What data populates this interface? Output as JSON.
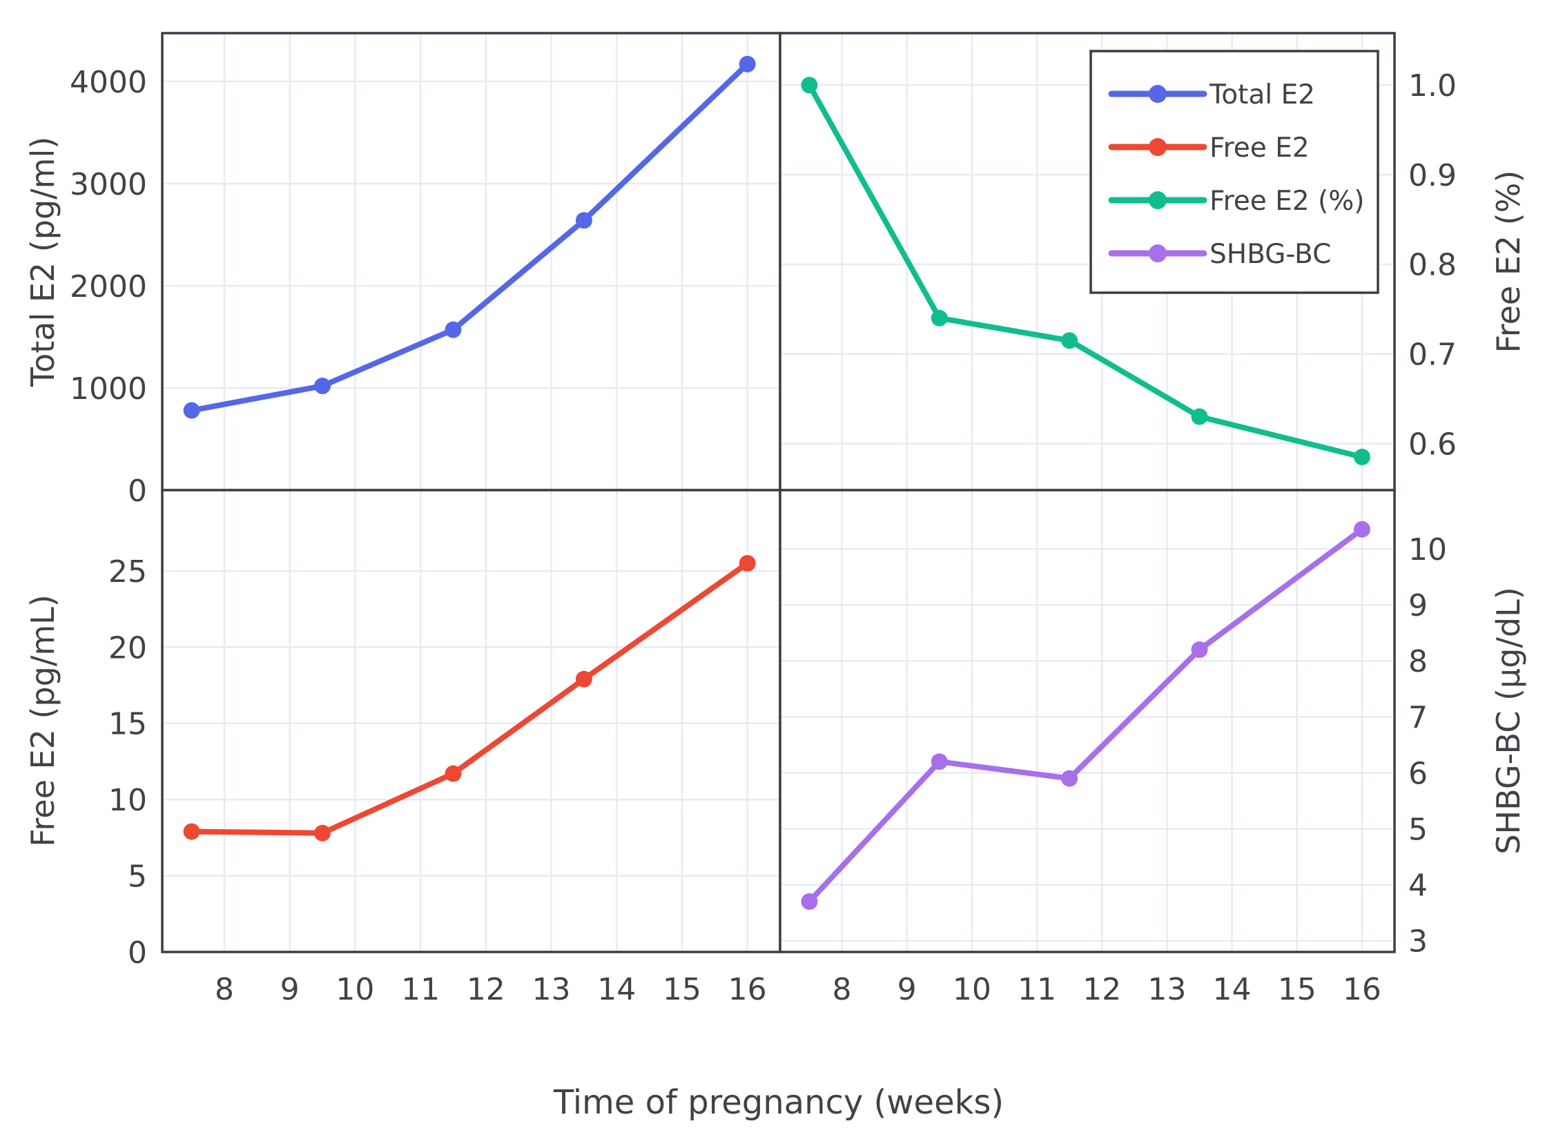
{
  "chart_data": {
    "type": "line",
    "title": "",
    "xlabel": "Time of pregnancy (weeks)",
    "x": [
      7.5,
      9.5,
      11.5,
      13.5,
      16
    ],
    "x_ticks": [
      8,
      9,
      10,
      11,
      12,
      13,
      14,
      15,
      16
    ],
    "x_range": [
      7.05,
      16.5
    ],
    "grid": true,
    "marker": "circle",
    "style": {
      "background": "#ffffff",
      "grid_color": "#e7ebf6",
      "axis_color": "#3a3e45",
      "text_color": "#3f4347"
    },
    "panels": [
      {
        "id": "top-left",
        "series": "Total E2",
        "ylabel": "Total E2 (pg/ml)",
        "axis_side": "left",
        "color": "#5467e8",
        "values": [
          780,
          1020,
          1570,
          2640,
          4170
        ],
        "y_ticks": [
          0,
          1000,
          2000,
          3000,
          4000
        ],
        "y_range": [
          0,
          4473
        ],
        "tick_decimals": 0
      },
      {
        "id": "top-right",
        "series": "Free E2 (%)",
        "ylabel": "Free E2 (%)",
        "axis_side": "right",
        "color": "#10bd8e",
        "values": [
          1.0,
          0.74,
          0.715,
          0.63,
          0.585
        ],
        "y_ticks": [
          0.6,
          0.7,
          0.8,
          0.9,
          1.0
        ],
        "y_range": [
          0.548,
          1.058
        ],
        "tick_decimals": 1
      },
      {
        "id": "bottom-left",
        "series": "Free E2",
        "ylabel": "Free E2 (pg/mL)",
        "axis_side": "left",
        "color": "#ee4834",
        "values": [
          7.9,
          7.8,
          11.7,
          17.9,
          25.5
        ],
        "y_ticks": [
          0,
          5,
          10,
          15,
          20,
          25
        ],
        "y_range": [
          0,
          30.3
        ],
        "tick_decimals": 0
      },
      {
        "id": "bottom-right",
        "series": "SHBG-BC",
        "ylabel": "SHBG-BC (µg/dL)",
        "axis_side": "right",
        "color": "#a770ea",
        "values": [
          3.7,
          6.2,
          5.9,
          8.2,
          10.35
        ],
        "y_ticks": [
          3,
          4,
          5,
          6,
          7,
          8,
          9,
          10
        ],
        "y_range": [
          2.8,
          11.05
        ],
        "tick_decimals": 0
      }
    ],
    "legend": {
      "position": "top-right-panel",
      "items": [
        {
          "label": "Total E2",
          "color": "#5467e8"
        },
        {
          "label": "Free E2",
          "color": "#ee4834"
        },
        {
          "label": "Free E2 (%)",
          "color": "#10bd8e"
        },
        {
          "label": "SHBG-BC",
          "color": "#a770ea"
        }
      ]
    }
  }
}
